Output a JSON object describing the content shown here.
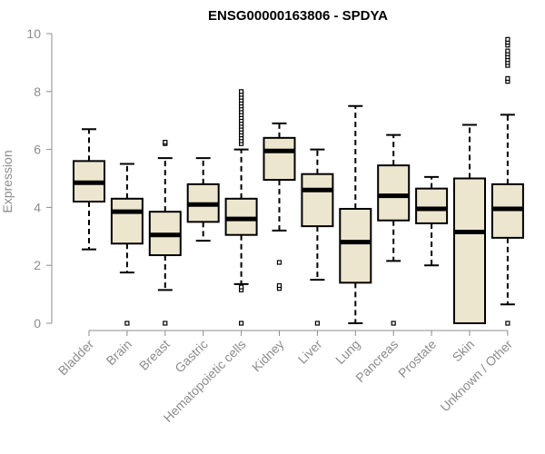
{
  "chart_data": {
    "type": "boxplot",
    "title": "ENSG00000163806 - SPDYA",
    "xlabel": "",
    "ylabel": "Expression",
    "ylim": [
      0,
      10
    ],
    "yticks": [
      "0",
      "2",
      "4",
      "6",
      "8",
      "10"
    ],
    "ytick_values": [
      0,
      2,
      4,
      6,
      8,
      10
    ],
    "box_fill": "#ede6cf",
    "box_stroke": "#000000",
    "axis_color": "#8c8c8c",
    "categories": [
      "Bladder",
      "Brain",
      "Breast",
      "Gastric",
      "Hematopoietic cells",
      "Kidney",
      "Liver",
      "Lung",
      "Pancreas",
      "Prostate",
      "Skin",
      "Unknown / Other"
    ],
    "boxes": [
      {
        "category": "Bladder",
        "whisker_low": 2.55,
        "q1": 4.2,
        "median": 4.85,
        "q3": 5.6,
        "whisker_high": 6.7,
        "outliers": []
      },
      {
        "category": "Brain",
        "whisker_low": 1.75,
        "q1": 2.75,
        "median": 3.85,
        "q3": 4.3,
        "whisker_high": 5.5,
        "outliers": [
          0
        ]
      },
      {
        "category": "Breast",
        "whisker_low": 1.15,
        "q1": 2.35,
        "median": 3.05,
        "q3": 3.85,
        "whisker_high": 5.7,
        "outliers": [
          0,
          6.2,
          6.25
        ]
      },
      {
        "category": "Gastric",
        "whisker_low": 2.85,
        "q1": 3.5,
        "median": 4.1,
        "q3": 4.8,
        "whisker_high": 5.7,
        "outliers": []
      },
      {
        "category": "Hematopoietic cells",
        "whisker_low": 1.35,
        "q1": 3.05,
        "median": 3.6,
        "q3": 4.3,
        "whisker_high": 6.0,
        "outliers": [
          0,
          1.15,
          1.25,
          6.2,
          6.3,
          6.4,
          6.5,
          6.6,
          6.7,
          6.8,
          6.9,
          7.0,
          7.1,
          7.2,
          7.3,
          7.4,
          7.5,
          7.6,
          7.7,
          7.8,
          7.9,
          8.0
        ]
      },
      {
        "category": "Kidney",
        "whisker_low": 3.2,
        "q1": 4.95,
        "median": 5.95,
        "q3": 6.4,
        "whisker_high": 6.9,
        "outliers": [
          1.2,
          1.3,
          2.1
        ]
      },
      {
        "category": "Liver",
        "whisker_low": 1.5,
        "q1": 3.35,
        "median": 4.6,
        "q3": 5.15,
        "whisker_high": 6.0,
        "outliers": [
          0
        ]
      },
      {
        "category": "Lung",
        "whisker_low": 0.0,
        "q1": 1.4,
        "median": 2.8,
        "q3": 3.95,
        "whisker_high": 7.5,
        "outliers": []
      },
      {
        "category": "Pancreas",
        "whisker_low": 2.15,
        "q1": 3.55,
        "median": 4.4,
        "q3": 5.45,
        "whisker_high": 6.5,
        "outliers": [
          0
        ]
      },
      {
        "category": "Prostate",
        "whisker_low": 2.0,
        "q1": 3.45,
        "median": 3.95,
        "q3": 4.65,
        "whisker_high": 5.05,
        "outliers": []
      },
      {
        "category": "Skin",
        "whisker_low": 0.0,
        "q1": 0.0,
        "median": 3.15,
        "q3": 5.0,
        "whisker_high": 6.85,
        "outliers": []
      },
      {
        "category": "Unknown / Other",
        "whisker_low": 0.65,
        "q1": 2.95,
        "median": 3.95,
        "q3": 4.8,
        "whisker_high": 7.2,
        "outliers": [
          0,
          8.35,
          8.45,
          8.9,
          9.0,
          9.1,
          9.2,
          9.3,
          9.4,
          9.6,
          9.7,
          9.8
        ]
      }
    ]
  }
}
